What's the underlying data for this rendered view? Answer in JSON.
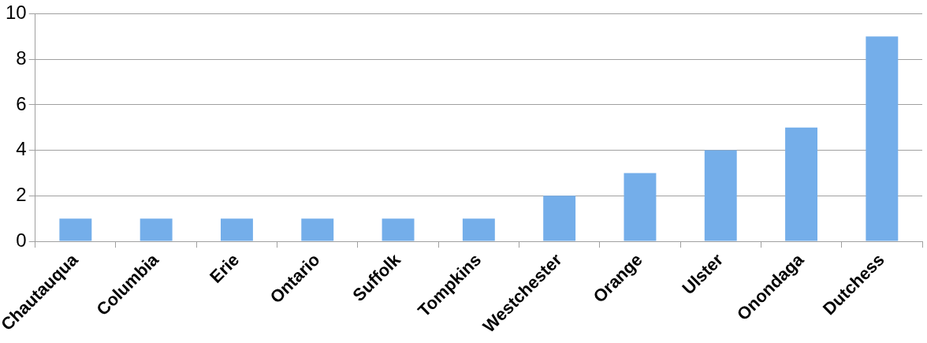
{
  "chart_data": {
    "type": "bar",
    "categories": [
      "Chautauqua",
      "Columbia",
      "Erie",
      "Ontario",
      "Suffolk",
      "Tompkins",
      "Westchester",
      "Orange",
      "Ulster",
      "Onondaga",
      "Dutchess"
    ],
    "values": [
      1,
      1,
      1,
      1,
      1,
      1,
      2,
      3,
      4,
      5,
      9
    ],
    "color": "#74aeea",
    "ylim": [
      0,
      10
    ],
    "yticks": [
      0,
      2,
      4,
      6,
      8,
      10
    ],
    "grid": "y"
  }
}
